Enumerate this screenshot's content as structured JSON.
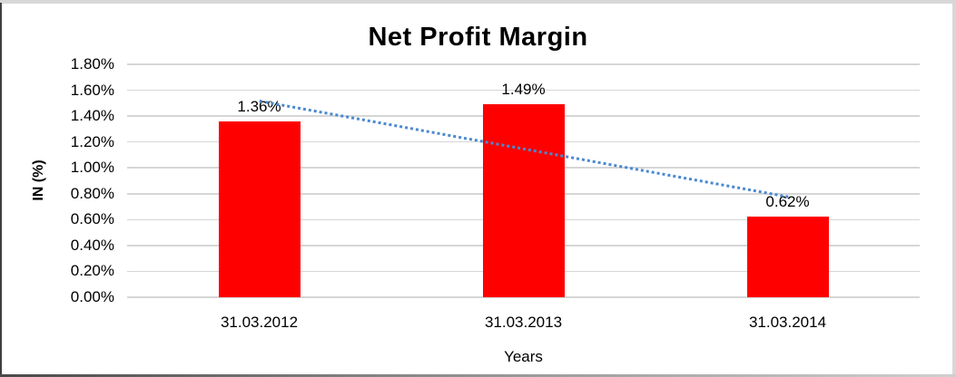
{
  "chart_data": {
    "type": "bar",
    "title": "Net Profit Margin",
    "categories": [
      "31.03.2012",
      "31.03.2013",
      "31.03.2014"
    ],
    "values": [
      1.36,
      1.49,
      0.62
    ],
    "data_labels": [
      "1.36%",
      "1.49%",
      "0.62%"
    ],
    "xlabel": "Years",
    "ylabel": "IN (%)",
    "ylim": [
      0,
      1.8
    ],
    "ytick_step": 0.2,
    "yticks": [
      "0.00%",
      "0.20%",
      "0.40%",
      "0.60%",
      "0.80%",
      "1.00%",
      "1.20%",
      "1.40%",
      "1.60%",
      "1.80%"
    ],
    "grid": true,
    "legend": false,
    "trendline": {
      "type": "linear",
      "style": "dotted"
    },
    "colors": {
      "bar": "#ff0000",
      "trendline": "#4a89d0",
      "gridline": "#d6d6d6",
      "text": "#000000"
    }
  }
}
